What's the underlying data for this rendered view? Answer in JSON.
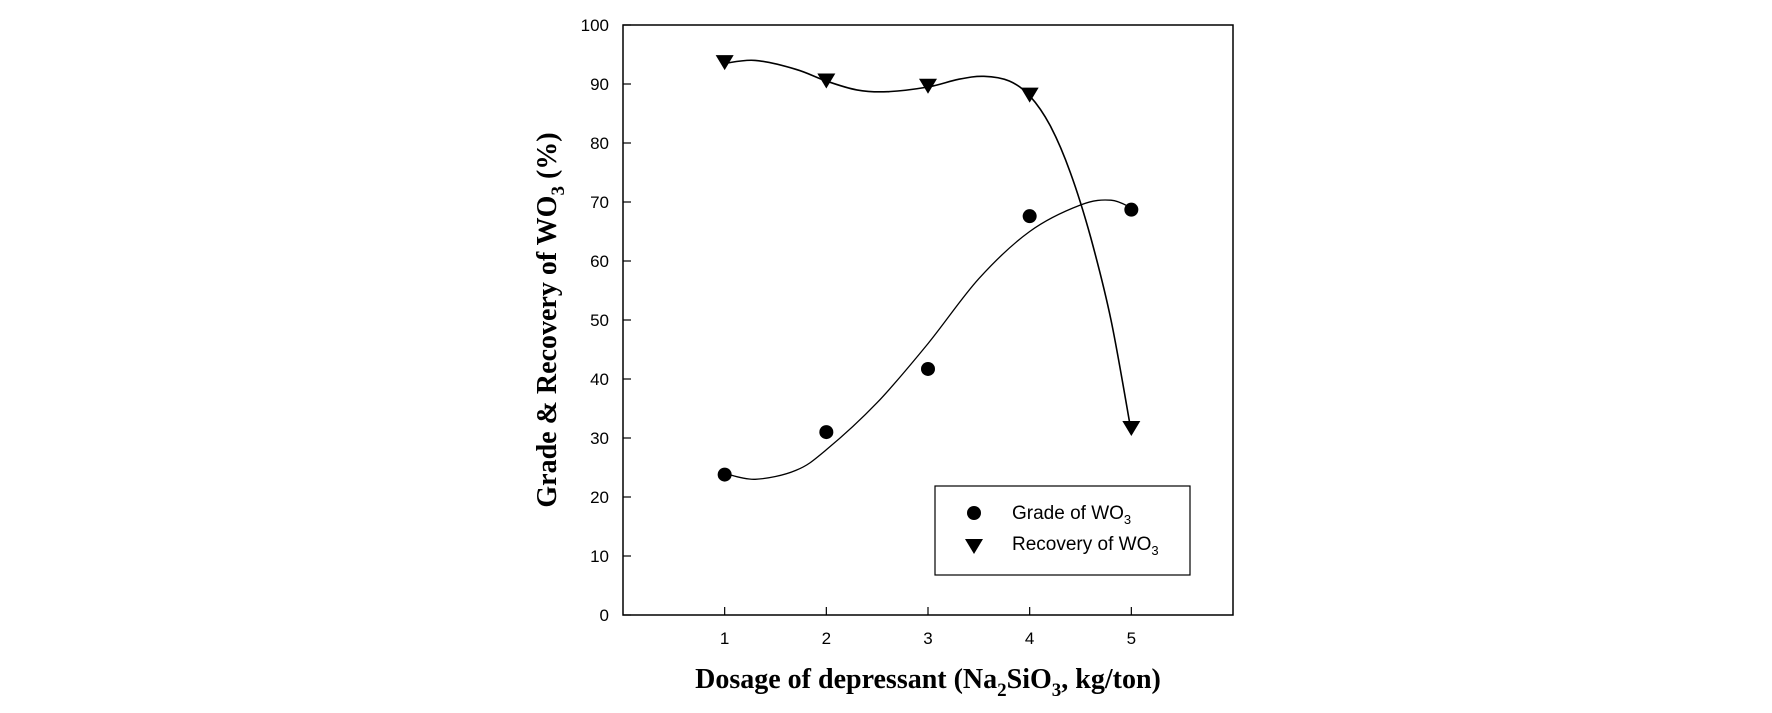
{
  "chart_data": {
    "type": "scatter",
    "title": "",
    "x_ticks": [
      1,
      2,
      3,
      4,
      5
    ],
    "y_ticks": [
      0,
      10,
      20,
      30,
      40,
      50,
      60,
      70,
      80,
      90,
      100
    ],
    "xlim": [
      0,
      6
    ],
    "ylim": [
      0,
      100
    ],
    "grid": false,
    "legend_position": "bottom-right",
    "xlabel": {
      "main": "Dosage of depressant (Na",
      "sub1": "2",
      "mid": "SiO",
      "sub2": "3",
      "end": ", kg/ton)"
    },
    "ylabel": {
      "main": "Grade & Recovery of WO",
      "sub": "3",
      "end": " (%)"
    },
    "series": [
      {
        "legend_main": "Grade of WO",
        "legend_sub": "3",
        "marker": "circle",
        "x": [
          1,
          2,
          3,
          4,
          5
        ],
        "values": [
          23.8,
          31.0,
          41.7,
          67.6,
          68.7
        ],
        "fit_curve": [
          [
            1.0,
            24.0
          ],
          [
            1.3,
            23.0
          ],
          [
            1.7,
            24.5
          ],
          [
            2.0,
            28.0
          ],
          [
            2.5,
            36.0
          ],
          [
            3.0,
            46.0
          ],
          [
            3.5,
            57.0
          ],
          [
            4.0,
            65.0
          ],
          [
            4.5,
            69.5
          ],
          [
            4.8,
            70.3
          ],
          [
            5.0,
            69.0
          ]
        ]
      },
      {
        "legend_main": "Recovery of WO",
        "legend_sub": "3",
        "marker": "triangle-down",
        "x": [
          1,
          2,
          3,
          4,
          5
        ],
        "values": [
          93.7,
          90.6,
          89.7,
          88.2,
          31.7
        ],
        "fit_curve": [
          [
            1.0,
            93.5
          ],
          [
            1.3,
            94.0
          ],
          [
            1.7,
            92.5
          ],
          [
            2.0,
            90.5
          ],
          [
            2.3,
            89.0
          ],
          [
            2.6,
            88.7
          ],
          [
            3.0,
            89.5
          ],
          [
            3.3,
            90.8
          ],
          [
            3.55,
            91.3
          ],
          [
            3.8,
            90.5
          ],
          [
            4.0,
            88.0
          ],
          [
            4.2,
            83.0
          ],
          [
            4.4,
            75.0
          ],
          [
            4.6,
            64.0
          ],
          [
            4.8,
            50.0
          ],
          [
            5.0,
            31.0
          ]
        ]
      }
    ]
  }
}
